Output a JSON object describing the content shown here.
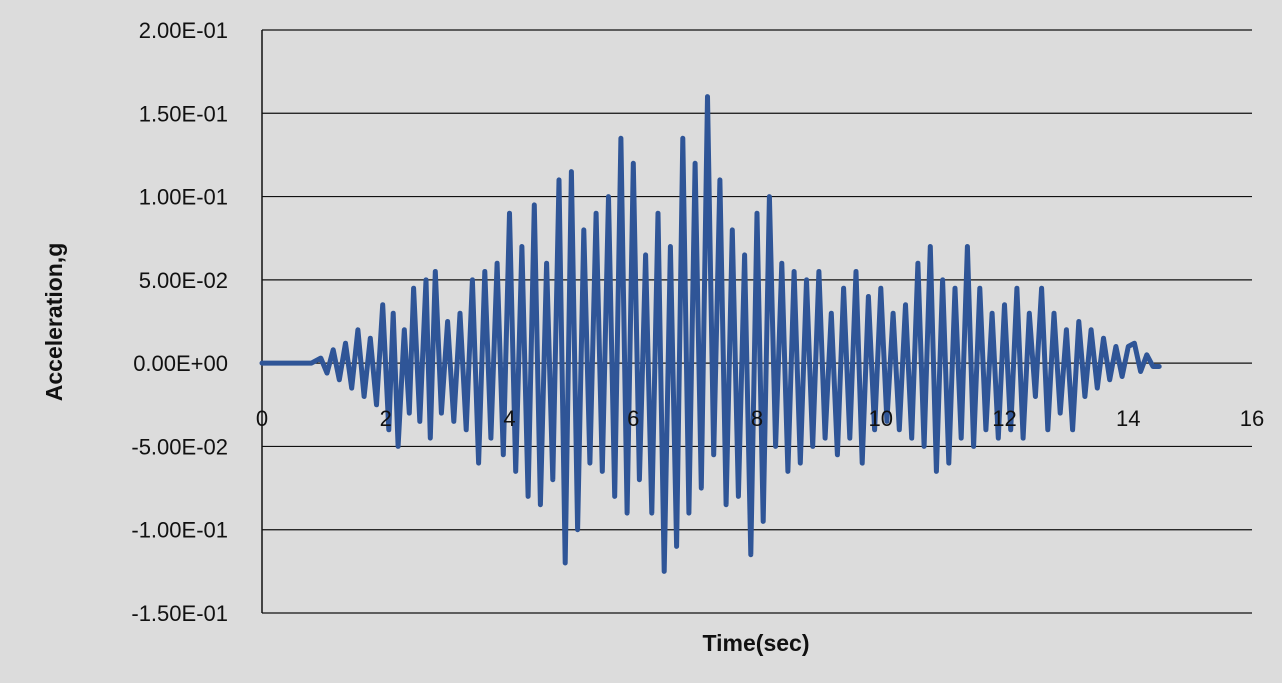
{
  "chart_data": {
    "type": "line",
    "title": "",
    "xlabel": "Time(sec)",
    "ylabel": "Acceleration,g",
    "xlim": [
      0,
      16
    ],
    "ylim": [
      -0.15,
      0.2
    ],
    "x_ticks": [
      "0",
      "2",
      "4",
      "6",
      "8",
      "10",
      "12",
      "14",
      "16"
    ],
    "y_ticks": [
      "2.00E-01",
      "1.50E-01",
      "1.00E-01",
      "5.00E-02",
      "0.00E+00",
      "-5.00E-02",
      "-1.00E-01",
      "-1.50E-01"
    ],
    "grid": "horizontal",
    "legend": "none",
    "series": [
      {
        "color": "#2f5597",
        "x": [
          0,
          0.5,
          0.8,
          0.95,
          1.05,
          1.15,
          1.25,
          1.35,
          1.45,
          1.55,
          1.65,
          1.75,
          1.85,
          1.95,
          2.05,
          2.12,
          2.2,
          2.3,
          2.38,
          2.45,
          2.55,
          2.65,
          2.72,
          2.8,
          2.9,
          3.0,
          3.1,
          3.2,
          3.3,
          3.4,
          3.5,
          3.6,
          3.7,
          3.8,
          3.9,
          4.0,
          4.1,
          4.2,
          4.3,
          4.4,
          4.5,
          4.6,
          4.7,
          4.8,
          4.9,
          5.0,
          5.1,
          5.2,
          5.3,
          5.4,
          5.5,
          5.6,
          5.7,
          5.8,
          5.9,
          6.0,
          6.1,
          6.2,
          6.3,
          6.4,
          6.5,
          6.6,
          6.7,
          6.8,
          6.9,
          7.0,
          7.1,
          7.2,
          7.3,
          7.4,
          7.5,
          7.6,
          7.7,
          7.8,
          7.9,
          8.0,
          8.1,
          8.2,
          8.3,
          8.4,
          8.5,
          8.6,
          8.7,
          8.8,
          8.9,
          9.0,
          9.1,
          9.2,
          9.3,
          9.4,
          9.5,
          9.6,
          9.7,
          9.8,
          9.9,
          10.0,
          10.1,
          10.2,
          10.3,
          10.4,
          10.5,
          10.6,
          10.7,
          10.8,
          10.9,
          11.0,
          11.1,
          11.2,
          11.3,
          11.4,
          11.5,
          11.6,
          11.7,
          11.8,
          11.9,
          12.0,
          12.1,
          12.2,
          12.3,
          12.4,
          12.5,
          12.6,
          12.7,
          12.8,
          12.9,
          13.0,
          13.1,
          13.2,
          13.3,
          13.4,
          13.5,
          13.6,
          13.7,
          13.8,
          13.9,
          14.0,
          14.1,
          14.2,
          14.3,
          14.4,
          14.5
        ],
        "y": [
          0.0,
          0.0,
          0.0,
          0.003,
          -0.006,
          0.008,
          -0.01,
          0.012,
          -0.015,
          0.02,
          -0.02,
          0.015,
          -0.025,
          0.035,
          -0.04,
          0.03,
          -0.05,
          0.02,
          -0.03,
          0.045,
          -0.035,
          0.05,
          -0.045,
          0.055,
          -0.03,
          0.025,
          -0.035,
          0.03,
          -0.04,
          0.05,
          -0.06,
          0.055,
          -0.045,
          0.06,
          -0.055,
          0.09,
          -0.065,
          0.07,
          -0.08,
          0.095,
          -0.085,
          0.06,
          -0.07,
          0.11,
          -0.12,
          0.115,
          -0.1,
          0.08,
          -0.06,
          0.09,
          -0.065,
          0.1,
          -0.08,
          0.135,
          -0.09,
          0.12,
          -0.07,
          0.065,
          -0.09,
          0.09,
          -0.125,
          0.07,
          -0.11,
          0.135,
          -0.09,
          0.12,
          -0.075,
          0.16,
          -0.055,
          0.11,
          -0.085,
          0.08,
          -0.08,
          0.065,
          -0.115,
          0.09,
          -0.095,
          0.1,
          -0.05,
          0.06,
          -0.065,
          0.055,
          -0.06,
          0.05,
          -0.05,
          0.055,
          -0.045,
          0.03,
          -0.055,
          0.045,
          -0.045,
          0.055,
          -0.06,
          0.04,
          -0.04,
          0.045,
          -0.035,
          0.03,
          -0.04,
          0.035,
          -0.045,
          0.06,
          -0.05,
          0.07,
          -0.065,
          0.05,
          -0.06,
          0.045,
          -0.045,
          0.07,
          -0.05,
          0.045,
          -0.04,
          0.03,
          -0.045,
          0.035,
          -0.04,
          0.045,
          -0.045,
          0.03,
          -0.02,
          0.045,
          -0.04,
          0.03,
          -0.03,
          0.02,
          -0.04,
          0.025,
          -0.02,
          0.02,
          -0.015,
          0.015,
          -0.01,
          0.01,
          -0.008,
          0.01,
          0.012,
          -0.005,
          0.005,
          -0.002,
          -0.002
        ]
      }
    ]
  }
}
